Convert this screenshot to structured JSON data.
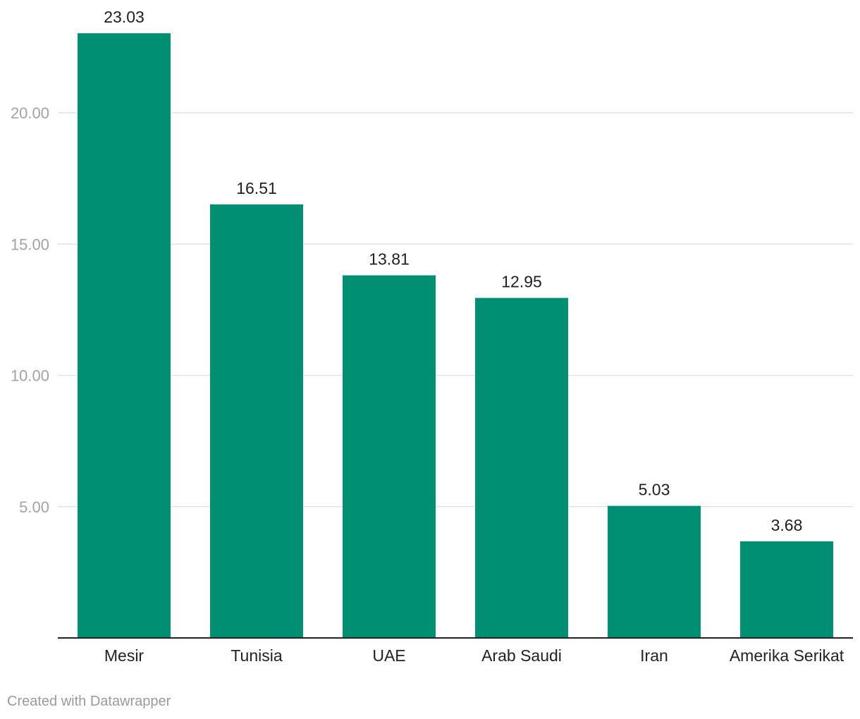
{
  "chart_data": {
    "type": "bar",
    "categories": [
      "Mesir",
      "Tunisia",
      "UAE",
      "Arab Saudi",
      "Iran",
      "Amerika Serikat"
    ],
    "values": [
      23.03,
      16.51,
      13.81,
      12.95,
      5.03,
      3.68
    ],
    "data_labels": [
      "23.03",
      "16.51",
      "13.81",
      "12.95",
      "5.03",
      "3.68"
    ],
    "y_ticks": [
      5,
      10,
      15,
      20
    ],
    "y_tick_labels": [
      "5.00",
      "10.00",
      "15.00",
      "20.00"
    ],
    "ylim": [
      0,
      24
    ],
    "grid": true,
    "bar_color": "#008f72"
  },
  "credit": "Created with Datawrapper"
}
